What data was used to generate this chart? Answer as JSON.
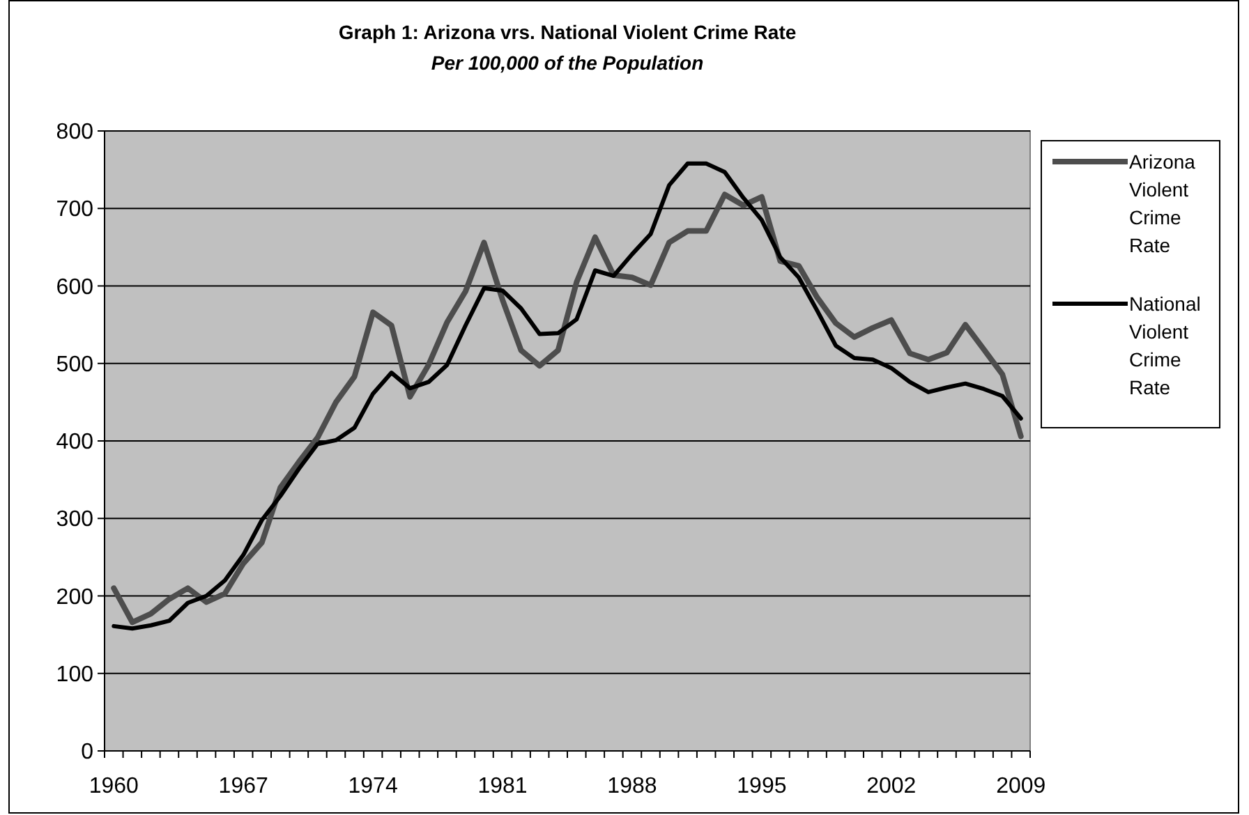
{
  "chart_data": {
    "type": "line",
    "title": "Graph 1: Arizona vrs. National Violent Crime Rate",
    "subtitle": "Per 100,000 of the Population",
    "categories": [
      "1960",
      null,
      null,
      null,
      null,
      null,
      null,
      "1967",
      null,
      null,
      null,
      null,
      null,
      null,
      "1974",
      null,
      null,
      null,
      null,
      null,
      null,
      "1981",
      null,
      null,
      null,
      null,
      null,
      null,
      "1988",
      null,
      null,
      null,
      null,
      null,
      null,
      "1995",
      null,
      null,
      null,
      null,
      null,
      null,
      "2002",
      null,
      null,
      null,
      null,
      null,
      null,
      "2009"
    ],
    "series": [
      {
        "name": "Arizona Violent Crime Rate",
        "color": "#4d4d4d",
        "values": [
          210,
          166,
          177,
          196,
          210,
          192,
          203,
          242,
          269,
          340,
          373,
          404,
          450,
          483,
          566,
          549,
          457,
          498,
          553,
          593,
          656,
          582,
          517,
          497,
          517,
          605,
          663,
          614,
          611,
          601,
          656,
          671,
          671,
          718,
          704,
          715,
          632,
          626,
          585,
          552,
          534,
          546,
          556,
          513,
          505,
          514,
          550,
          518,
          486,
          406
        ]
      },
      {
        "name": "National Violent Crime Rate",
        "color": "#000000",
        "values": [
          161,
          158,
          162,
          168,
          191,
          200,
          220,
          253,
          298,
          329,
          364,
          396,
          401,
          417,
          461,
          488,
          468,
          476,
          498,
          549,
          597,
          594,
          571,
          538,
          539,
          557,
          620,
          613,
          641,
          667,
          730,
          758,
          758,
          747,
          714,
          685,
          637,
          611,
          568,
          523,
          507,
          505,
          494,
          476,
          463,
          469,
          474,
          467,
          458,
          429
        ]
      }
    ],
    "ylim": [
      0,
      800
    ],
    "yticks": [
      0,
      100,
      200,
      300,
      400,
      500,
      600,
      700,
      800
    ],
    "grid": "y",
    "legend": "right",
    "line_style": "solid"
  }
}
